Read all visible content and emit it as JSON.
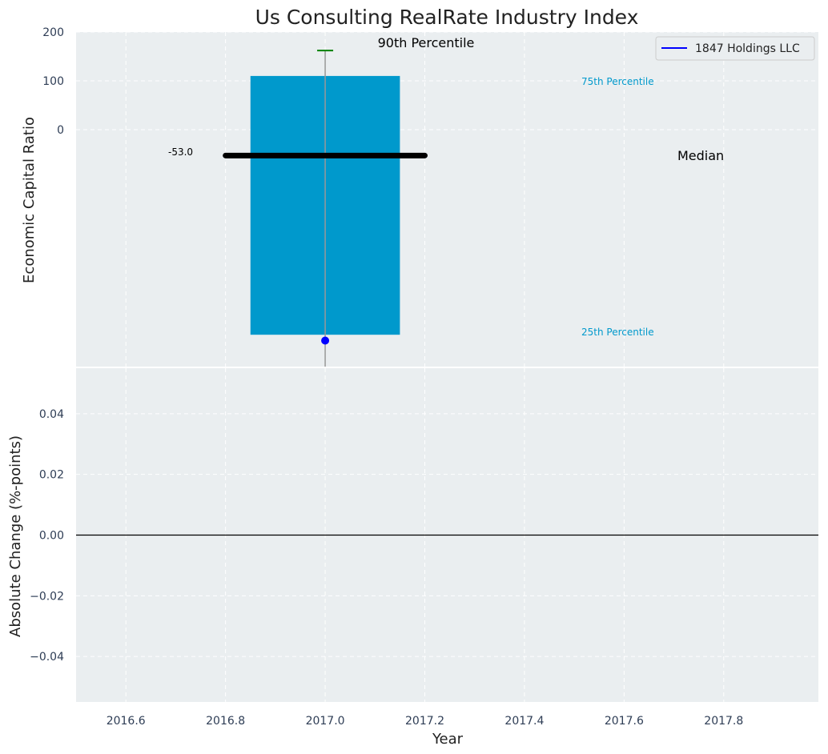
{
  "chart_data": [
    {
      "type": "bar",
      "panel": "top",
      "title": "Us Consulting RealRate Industry Index",
      "ylabel": "Economic Capital Ratio",
      "ylim": [
        -480,
        200
      ],
      "xlim": [
        2016.5,
        2017.99
      ],
      "yticks": [
        0,
        100,
        200
      ],
      "ytick_labels": [
        "0",
        "100",
        "200"
      ],
      "grid": true,
      "box": {
        "x": 2017.0,
        "low": -420,
        "high": 110,
        "width": 0.3
      },
      "whisker": {
        "x": 2017.0,
        "low": -480,
        "high": 162
      },
      "p90": {
        "x": 2017.0,
        "value": 162
      },
      "median": {
        "x_from": 2016.8,
        "x_to": 2017.2,
        "value": -53,
        "label": "-53.0"
      },
      "company_point": {
        "x": 2017.0,
        "value": -432,
        "name": "1847 Holdings LLC"
      },
      "annotations": {
        "p90": "90th Percentile",
        "p75": "75th Percentile",
        "p25": "25th Percentile",
        "median": "Median"
      },
      "legend": {
        "entries": [
          "1847 Holdings LLC"
        ],
        "position": "top-right"
      },
      "colors": {
        "box": "#0099cc",
        "median": "#000000",
        "p90": "#008000",
        "point": "#0000ff",
        "whisker": "#999999",
        "pct_label": "#0099cc"
      }
    },
    {
      "type": "line",
      "panel": "bottom",
      "xlabel": "Year",
      "ylabel": "Absolute Change (%-points)",
      "ylim": [
        -0.055,
        0.055
      ],
      "xlim": [
        2016.5,
        2017.99
      ],
      "yticks": [
        -0.04,
        -0.02,
        0.0,
        0.02,
        0.04
      ],
      "ytick_labels": [
        "−0.04",
        "−0.02",
        "0.00",
        "0.02",
        "0.04"
      ],
      "xticks": [
        2016.6,
        2016.8,
        2017.0,
        2017.2,
        2017.4,
        2017.6,
        2017.8
      ],
      "xtick_labels": [
        "2016.6",
        "2016.8",
        "2017.0",
        "2017.2",
        "2017.4",
        "2017.6",
        "2017.8"
      ],
      "zero_line": 0.0,
      "grid": true
    }
  ]
}
